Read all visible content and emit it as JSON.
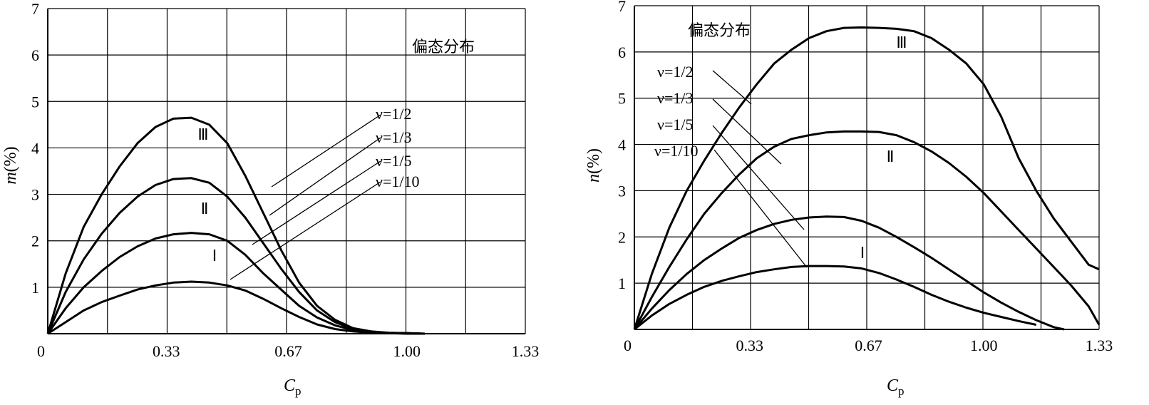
{
  "chart_data": [
    {
      "type": "line",
      "panel": "left",
      "title": "",
      "xlabel": "C_p",
      "xlabel_main": "C",
      "xlabel_sub": "p",
      "ylabel": "m(%)",
      "ylabel_main": "m",
      "ylabel_unit": "(%)",
      "xlim": [
        0,
        1.33
      ],
      "ylim": [
        0,
        7
      ],
      "x_ticks": [
        "0",
        "0.33",
        "0.67",
        "1.00",
        "1.33"
      ],
      "x_tick_values": [
        0,
        0.33,
        0.67,
        1.0,
        1.33
      ],
      "y_ticks": [
        "1",
        "2",
        "3",
        "4",
        "5",
        "6",
        "7"
      ],
      "y_tick_values": [
        1,
        2,
        3,
        4,
        5,
        6,
        7
      ],
      "annotation": "偏态分布",
      "series": [
        {
          "name": "ν=1/2",
          "numeral": "Ⅲ",
          "x": [
            0,
            0.05,
            0.1,
            0.15,
            0.2,
            0.25,
            0.3,
            0.35,
            0.4,
            0.45,
            0.5,
            0.55,
            0.6,
            0.65,
            0.7,
            0.75,
            0.8,
            0.85,
            0.9,
            0.95,
            1.0,
            1.05
          ],
          "y": [
            0,
            1.3,
            2.3,
            3.0,
            3.6,
            4.1,
            4.45,
            4.63,
            4.65,
            4.5,
            4.1,
            3.4,
            2.6,
            1.8,
            1.1,
            0.6,
            0.3,
            0.12,
            0.05,
            0.02,
            0.01,
            0.0
          ]
        },
        {
          "name": "ν=1/3",
          "numeral": "Ⅱ",
          "x": [
            0,
            0.05,
            0.1,
            0.15,
            0.2,
            0.25,
            0.3,
            0.35,
            0.4,
            0.45,
            0.5,
            0.55,
            0.6,
            0.65,
            0.7,
            0.75,
            0.8,
            0.85,
            0.9,
            0.95,
            1.0,
            1.05
          ],
          "y": [
            0,
            0.9,
            1.6,
            2.15,
            2.6,
            2.95,
            3.2,
            3.33,
            3.35,
            3.25,
            2.95,
            2.5,
            1.95,
            1.4,
            0.9,
            0.5,
            0.25,
            0.1,
            0.04,
            0.02,
            0.01,
            0.0
          ]
        },
        {
          "name": "ν=1/5",
          "numeral": "Ⅰ",
          "x": [
            0,
            0.05,
            0.1,
            0.15,
            0.2,
            0.25,
            0.3,
            0.35,
            0.4,
            0.45,
            0.5,
            0.55,
            0.6,
            0.65,
            0.7,
            0.75,
            0.8,
            0.85,
            0.9,
            0.95,
            1.0,
            1.05
          ],
          "y": [
            0,
            0.55,
            1.0,
            1.35,
            1.65,
            1.88,
            2.05,
            2.14,
            2.17,
            2.14,
            2.0,
            1.7,
            1.3,
            0.95,
            0.6,
            0.35,
            0.18,
            0.08,
            0.03,
            0.01,
            0.01,
            0.0
          ]
        },
        {
          "name": "ν=1/10",
          "numeral": "",
          "x": [
            0,
            0.05,
            0.1,
            0.15,
            0.2,
            0.25,
            0.3,
            0.35,
            0.4,
            0.45,
            0.5,
            0.55,
            0.6,
            0.65,
            0.7,
            0.75,
            0.8,
            0.85,
            0.9,
            0.95,
            1.0,
            1.05
          ],
          "y": [
            0,
            0.25,
            0.5,
            0.68,
            0.82,
            0.95,
            1.04,
            1.1,
            1.12,
            1.1,
            1.04,
            0.93,
            0.75,
            0.55,
            0.36,
            0.2,
            0.1,
            0.05,
            0.02,
            0.01,
            0.0,
            0.0
          ]
        }
      ]
    },
    {
      "type": "line",
      "panel": "right",
      "title": "",
      "xlabel": "C_p",
      "xlabel_main": "C",
      "xlabel_sub": "p",
      "ylabel": "n(%)",
      "ylabel_main": "n",
      "ylabel_unit": "(%)",
      "xlim": [
        0,
        1.33
      ],
      "ylim": [
        0,
        7
      ],
      "x_ticks": [
        "0",
        "0.33",
        "0.67",
        "1.00",
        "1.33"
      ],
      "x_tick_values": [
        0,
        0.33,
        0.67,
        1.0,
        1.33
      ],
      "y_ticks": [
        "1",
        "2",
        "3",
        "4",
        "5",
        "6",
        "7"
      ],
      "y_tick_values": [
        1,
        2,
        3,
        4,
        5,
        6,
        7
      ],
      "annotation": "偏态分布",
      "series": [
        {
          "name": "ν=1/2",
          "numeral": "Ⅲ",
          "x": [
            0,
            0.05,
            0.1,
            0.15,
            0.2,
            0.25,
            0.3,
            0.35,
            0.4,
            0.45,
            0.5,
            0.55,
            0.6,
            0.65,
            0.7,
            0.75,
            0.8,
            0.85,
            0.9,
            0.95,
            1.0,
            1.05,
            1.1,
            1.15,
            1.2,
            1.25,
            1.3,
            1.33
          ],
          "y": [
            0,
            1.2,
            2.2,
            3.0,
            3.65,
            4.25,
            4.8,
            5.3,
            5.75,
            6.05,
            6.3,
            6.45,
            6.52,
            6.53,
            6.52,
            6.5,
            6.45,
            6.3,
            6.05,
            5.75,
            5.3,
            4.6,
            3.7,
            3.0,
            2.4,
            1.9,
            1.4,
            1.3
          ]
        },
        {
          "name": "ν=1/3",
          "numeral": "Ⅱ",
          "x": [
            0,
            0.05,
            0.1,
            0.15,
            0.2,
            0.25,
            0.3,
            0.35,
            0.4,
            0.45,
            0.5,
            0.55,
            0.6,
            0.65,
            0.7,
            0.75,
            0.8,
            0.85,
            0.9,
            0.95,
            1.0,
            1.05,
            1.1,
            1.15,
            1.2,
            1.25,
            1.3,
            1.33
          ],
          "y": [
            0,
            0.7,
            1.35,
            1.95,
            2.5,
            2.95,
            3.35,
            3.7,
            3.95,
            4.12,
            4.2,
            4.26,
            4.28,
            4.28,
            4.27,
            4.2,
            4.05,
            3.85,
            3.6,
            3.3,
            2.95,
            2.55,
            2.15,
            1.75,
            1.35,
            0.95,
            0.5,
            0.1
          ]
        },
        {
          "name": "ν=1/5",
          "numeral": "",
          "x": [
            0,
            0.05,
            0.1,
            0.15,
            0.2,
            0.25,
            0.3,
            0.35,
            0.4,
            0.45,
            0.5,
            0.55,
            0.6,
            0.65,
            0.7,
            0.75,
            0.8,
            0.85,
            0.9,
            0.95,
            1.0,
            1.05,
            1.1,
            1.15,
            1.2,
            1.23
          ],
          "y": [
            0,
            0.45,
            0.85,
            1.2,
            1.5,
            1.75,
            1.98,
            2.15,
            2.28,
            2.37,
            2.42,
            2.44,
            2.43,
            2.35,
            2.2,
            2.0,
            1.78,
            1.55,
            1.3,
            1.05,
            0.8,
            0.58,
            0.38,
            0.2,
            0.05,
            0.0
          ]
        },
        {
          "name": "ν=1/10",
          "numeral": "Ⅰ",
          "x": [
            0,
            0.05,
            0.1,
            0.15,
            0.2,
            0.25,
            0.3,
            0.35,
            0.4,
            0.45,
            0.5,
            0.55,
            0.6,
            0.65,
            0.7,
            0.75,
            0.8,
            0.85,
            0.9,
            0.95,
            1.0,
            1.05,
            1.1,
            1.15
          ],
          "y": [
            0,
            0.3,
            0.55,
            0.75,
            0.92,
            1.05,
            1.15,
            1.24,
            1.3,
            1.35,
            1.37,
            1.37,
            1.36,
            1.32,
            1.22,
            1.08,
            0.92,
            0.75,
            0.6,
            0.47,
            0.36,
            0.27,
            0.18,
            0.1
          ]
        }
      ]
    }
  ]
}
